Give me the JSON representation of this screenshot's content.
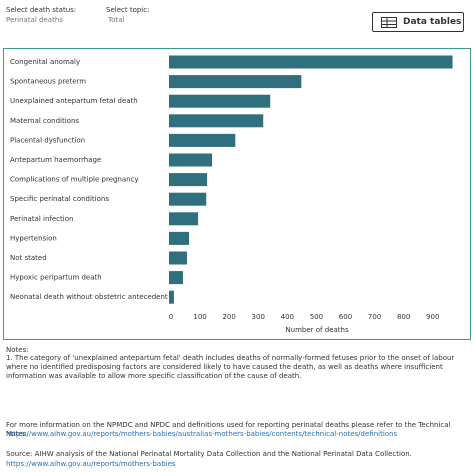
{
  "filters": [
    {
      "label": "Select death status:",
      "value": "Perinatal deaths"
    },
    {
      "label": "Select topic:",
      "value": "Total"
    }
  ],
  "button": "Data tables",
  "chart_data": {
    "type": "bar",
    "orientation": "horizontal",
    "categories": [
      "Congenital anomaly",
      "Spontaneous preterm",
      "Unexplained antepartum fetal death",
      "Maternal conditions",
      "Placental dysfunction",
      "Antepartum haemorrhage",
      "Complications of multiple pregnancy",
      "Specific perinatal conditions",
      "Perinatal infection",
      "Hypertension",
      "Not stated",
      "Hypoxic peripartum death",
      "Neonatal death without obstetric antecedent"
    ],
    "values": [
      975,
      455,
      348,
      324,
      228,
      148,
      131,
      128,
      100,
      69,
      62,
      48,
      17
    ],
    "color": "#2f6f7e",
    "xlabel": "Number of deaths",
    "xlim": [
      0,
      980
    ],
    "xticks": [
      0,
      100,
      200,
      300,
      400,
      500,
      600,
      700,
      800,
      900
    ],
    "grid": false
  },
  "notes": {
    "title": "Notes:",
    "items": [
      "1. The category of 'unexplained antepartum fetal' death includes deaths of normally-formed fetuses prior to the onset of labour where no identified predisposing factors are considered likely to have caused the death, as well as deaths where insufficient information was available to allow more specific classification of the cause of death."
    ]
  },
  "footer": {
    "info": "For more information on the NPMDC and NPDC and definitions used for reporting perinatal deaths please refer to the Technical Notes.",
    "info_link": "https://www.aihw.gov.au/reports/mothers-babies/australias-mothers-babies/contents/technical-notes/definitions",
    "source": "Source: AIHW analysis of the National Perinatal Mortality Data Collection and the National Perinatal Data Collection.",
    "source_link": "https://www.aihw.gov.au/reports/mothers-babies"
  }
}
